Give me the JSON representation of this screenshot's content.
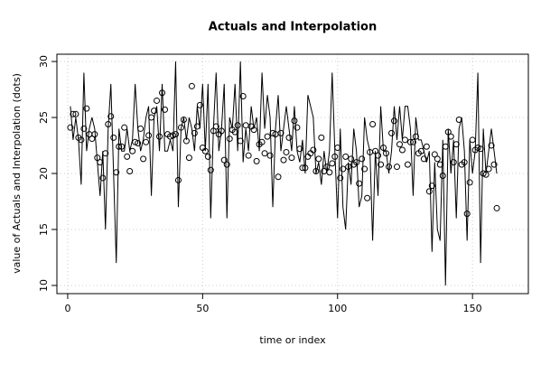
{
  "chart_data": {
    "type": "line",
    "title": "Actuals and Interpolation",
    "x_label": "time or index",
    "y_label": "value of Actuals and Interpolation (dots)",
    "x": [
      1,
      2,
      3,
      4,
      5,
      6,
      7,
      8,
      9,
      10,
      11,
      12,
      13,
      14,
      15,
      16,
      17,
      18,
      19,
      20,
      21,
      22,
      23,
      24,
      25,
      26,
      27,
      28,
      29,
      30,
      31,
      32,
      33,
      34,
      35,
      36,
      37,
      38,
      39,
      40,
      41,
      42,
      43,
      44,
      45,
      46,
      47,
      48,
      49,
      50,
      51,
      52,
      53,
      54,
      55,
      56,
      57,
      58,
      59,
      60,
      61,
      62,
      63,
      64,
      65,
      66,
      67,
      68,
      69,
      70,
      71,
      72,
      73,
      74,
      75,
      76,
      77,
      78,
      79,
      80,
      81,
      82,
      83,
      84,
      85,
      86,
      87,
      88,
      89,
      90,
      91,
      92,
      93,
      94,
      95,
      96,
      97,
      98,
      99,
      100,
      101,
      102,
      103,
      104,
      105,
      106,
      107,
      108,
      109,
      110,
      111,
      112,
      113,
      114,
      115,
      116,
      117,
      118,
      119,
      120,
      121,
      122,
      123,
      124,
      125,
      126,
      127,
      128,
      129,
      130,
      131,
      132,
      133,
      134,
      135,
      136,
      137,
      138,
      139,
      140,
      141,
      142,
      143,
      144,
      145,
      146,
      147,
      148,
      149,
      150,
      151,
      152,
      153,
      154,
      155,
      156,
      157,
      158,
      159
    ],
    "series": [
      {
        "style": "line",
        "color": "#000000",
        "values": [
          26,
          23,
          25,
          23,
          19,
          29,
          22,
          24,
          25,
          24,
          21,
          18,
          22,
          15,
          24,
          28,
          20,
          12,
          24,
          22,
          22,
          24,
          22,
          23,
          28,
          24,
          22,
          23,
          25,
          26,
          18,
          25,
          26,
          22,
          28,
          22,
          22,
          23,
          22,
          30,
          17,
          24,
          25,
          23,
          25,
          24,
          22,
          26,
          24,
          28,
          22,
          28,
          16,
          24,
          29,
          22,
          24,
          28,
          16,
          25,
          24,
          28,
          22,
          30,
          21,
          24,
          22,
          26,
          24,
          25,
          22,
          29,
          24,
          27,
          25,
          17,
          24,
          27,
          22,
          24,
          26,
          24,
          22,
          26,
          22,
          21,
          23,
          20,
          27,
          26,
          25,
          20,
          21,
          19,
          22,
          20,
          22,
          29,
          22,
          16,
          24,
          17,
          15,
          21,
          19,
          24,
          22,
          17,
          18,
          25,
          23,
          22,
          14,
          22,
          18,
          26,
          22,
          22,
          20,
          22,
          26,
          23,
          26,
          23,
          26,
          26,
          24,
          18,
          25,
          23,
          23,
          22,
          21,
          22,
          13,
          21,
          15,
          14,
          23,
          10,
          24,
          20,
          23,
          16,
          24,
          25,
          22,
          14,
          23,
          20,
          22,
          29,
          12,
          24,
          20,
          22,
          24,
          22,
          20
        ]
      },
      {
        "style": "points",
        "color": "#000000",
        "values": [
          24.1,
          25.3,
          25.3,
          23.2,
          23.0,
          24.0,
          25.8,
          23.5,
          23.1,
          23.5,
          21.4,
          21.0,
          19.6,
          21.8,
          24.4,
          25.1,
          23.2,
          20.1,
          22.4,
          22.4,
          24.1,
          21.5,
          20.2,
          22.0,
          22.8,
          22.7,
          24.0,
          21.3,
          22.8,
          23.4,
          25.0,
          25.6,
          26.5,
          23.3,
          27.2,
          25.7,
          23.5,
          23.3,
          23.4,
          23.5,
          19.4,
          24.1,
          24.8,
          22.9,
          21.4,
          27.8,
          23.6,
          24.2,
          26.1,
          22.3,
          22.0,
          21.5,
          20.3,
          23.8,
          24.2,
          23.5,
          23.8,
          21.2,
          20.8,
          23.1,
          23.9,
          23.7,
          24.3,
          22.9,
          26.9,
          24.3,
          21.6,
          24.2,
          23.9,
          21.1,
          22.6,
          22.8,
          21.8,
          23.3,
          21.6,
          23.6,
          23.5,
          19.7,
          23.6,
          21.2,
          21.9,
          23.2,
          21.4,
          24.7,
          24.1,
          22.2,
          20.5,
          20.5,
          21.5,
          21.8,
          22.1,
          20.2,
          21.3,
          23.2,
          20.2,
          20.6,
          20.1,
          20.9,
          21.5,
          22.3,
          19.6,
          20.4,
          21.5,
          20.6,
          21.3,
          20.8,
          21.0,
          19.1,
          21.3,
          20.4,
          17.8,
          21.9,
          24.4,
          22.0,
          21.6,
          20.8,
          22.3,
          21.8,
          20.6,
          23.6,
          24.7,
          20.6,
          22.6,
          22.1,
          23.0,
          20.8,
          22.8,
          22.8,
          23.3,
          21.8,
          22.0,
          21.3,
          22.4,
          18.4,
          18.9,
          21.7,
          21.3,
          20.8,
          19.8,
          22.4,
          23.7,
          23.3,
          21.0,
          22.6,
          24.8,
          20.8,
          21.0,
          16.4,
          19.2,
          23.0,
          22.1,
          22.3,
          22.2,
          20.0,
          19.9,
          20.4,
          22.5,
          20.8,
          16.9
        ]
      }
    ],
    "xlim": [
      -4,
      170.7
    ],
    "ylim": [
      9.27,
      30.65
    ],
    "xticks": [
      0,
      50,
      100,
      150
    ],
    "yticks": [
      10,
      15,
      20,
      25,
      30
    ],
    "grid": true
  }
}
